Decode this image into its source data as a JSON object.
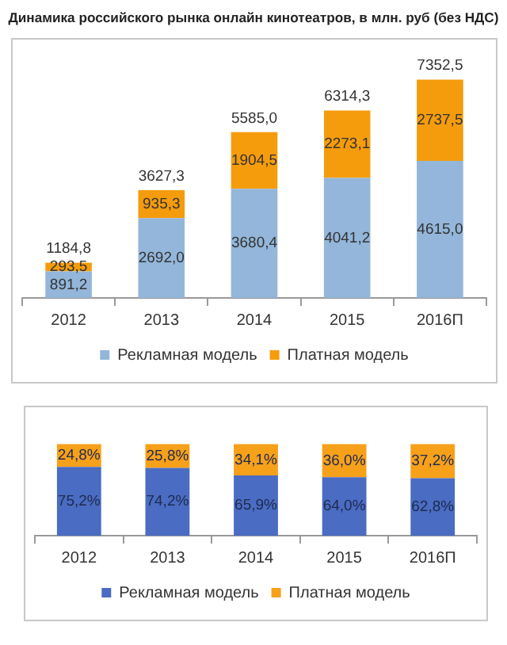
{
  "chart_data": [
    {
      "type": "bar",
      "title": "Динамика российского рынка онлайн кинотеатров, в млн. руб (без НДС)",
      "categories": [
        "2012",
        "2013",
        "2014",
        "2015",
        "2016П"
      ],
      "stacked": true,
      "legend": "bottom",
      "tick_labels": "x",
      "series": [
        {
          "name": "Рекламная модель",
          "color": "#93b6da",
          "values": [
            891.2,
            2692.0,
            3680.4,
            4041.2,
            4615.0
          ],
          "value_labels": [
            "891,2",
            "2692,0",
            "3680,4",
            "4041,2",
            "4615,0"
          ]
        },
        {
          "name": "Платная модель",
          "color": "#f59c0c",
          "values": [
            293.5,
            935.3,
            1904.5,
            2273.1,
            2737.5
          ],
          "value_labels": [
            "293,5",
            "935,3",
            "1904,5",
            "2273,1",
            "2737,5"
          ]
        }
      ],
      "totals": [
        "1184,8",
        "3627,3",
        "5585,0",
        "6314,3",
        "7352,5"
      ]
    },
    {
      "type": "bar",
      "categories": [
        "2012",
        "2013",
        "2014",
        "2015",
        "2016П"
      ],
      "stacked": true,
      "legend": "bottom",
      "tick_labels": "x",
      "series": [
        {
          "name": "Рекламная модель",
          "color": "#4a6cc2",
          "values": [
            75.2,
            74.2,
            65.9,
            64.0,
            62.8
          ],
          "value_labels": [
            "75,2%",
            "74,2%",
            "65,9%",
            "64,0%",
            "62,8%"
          ]
        },
        {
          "name": "Платная модель",
          "color": "#f7a01a",
          "values": [
            24.8,
            25.8,
            34.1,
            36.0,
            37.2
          ],
          "value_labels": [
            "24,8%",
            "25,8%",
            "34,1%",
            "36,0%",
            "37,2%"
          ]
        }
      ]
    }
  ]
}
